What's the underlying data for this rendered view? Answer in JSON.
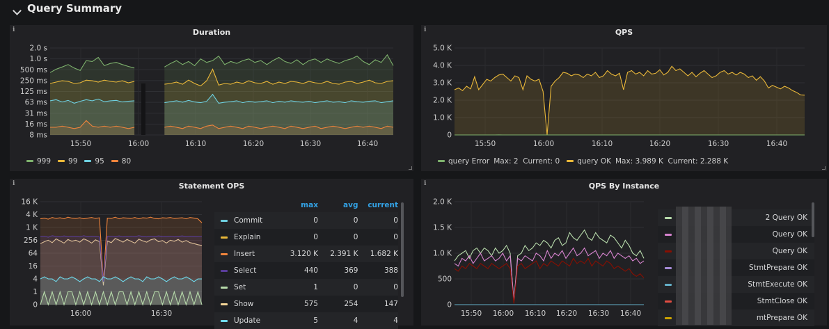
{
  "row": {
    "title": "Query Summary"
  },
  "panels": {
    "duration": {
      "title": "Duration",
      "info": "i",
      "legend": [
        {
          "label": "999",
          "color": "#7eb26d"
        },
        {
          "label": "99",
          "color": "#eab839"
        },
        {
          "label": "95",
          "color": "#6ed0e0"
        },
        {
          "label": "80",
          "color": "#ef843c"
        }
      ]
    },
    "qps": {
      "title": "QPS",
      "info": "i",
      "legend": [
        {
          "label": "query Error",
          "stats": "Max: 2  Current: 0",
          "color": "#7eb26d"
        },
        {
          "label": "query OK",
          "stats": "Max: 3.989 K  Current: 2.288 K",
          "color": "#eab839"
        }
      ]
    },
    "statement_ops": {
      "title": "Statement OPS",
      "info": "i",
      "table": {
        "headers": [
          "max",
          "avg",
          "current"
        ],
        "rows": [
          {
            "name": "Commit",
            "max": "0",
            "avg": "0",
            "current": "0",
            "color": "#6ed0e0"
          },
          {
            "name": "Explain",
            "max": "0",
            "avg": "0",
            "current": "0",
            "color": "#eab839"
          },
          {
            "name": "Insert",
            "max": "3.120 K",
            "avg": "2.391 K",
            "current": "1.682 K",
            "color": "#ef843c"
          },
          {
            "name": "Select",
            "max": "440",
            "avg": "369",
            "current": "388",
            "color": "#5a3d9a"
          },
          {
            "name": "Set",
            "max": "1",
            "avg": "0",
            "current": "0",
            "color": "#b7dbab"
          },
          {
            "name": "Show",
            "max": "575",
            "avg": "254",
            "current": "147",
            "color": "#f4d598"
          },
          {
            "name": "Update",
            "max": "5",
            "avg": "4",
            "current": "4",
            "color": "#70dbed"
          }
        ]
      }
    },
    "qps_by_instance": {
      "title": "QPS By Instance",
      "info": "i",
      "legend": [
        {
          "label": "2 Query OK",
          "color": "#b7dbab"
        },
        {
          "label": "Query OK",
          "color": "#d683ce"
        },
        {
          "label": "Query OK",
          "color": "#890f02"
        },
        {
          "label": "StmtPrepare OK",
          "color": "#a58bd6"
        },
        {
          "label": "StmtExecute OK",
          "color": "#64b0c8"
        },
        {
          "label": "StmtClose OK",
          "color": "#e24d42"
        },
        {
          "label": "mtPrepare OK",
          "color": "#cca300"
        }
      ]
    }
  },
  "chart_data": [
    {
      "type": "line",
      "title": "Duration",
      "x_ticks": [
        "15:50",
        "16:00",
        "16:10",
        "16:20",
        "16:30",
        "16:40"
      ],
      "y_ticks": [
        "8 ms",
        "16 ms",
        "31 ms",
        "63 ms",
        "125 ms",
        "250 ms",
        "500 ms",
        "1.0 s",
        "2.0 s"
      ],
      "log_scale": true,
      "grid": true,
      "series": [
        {
          "name": "999",
          "color": "#7eb26d",
          "values": [
            420,
            520,
            600,
            700,
            560,
            480,
            900,
            850,
            1100,
            650,
            750,
            800,
            700,
            620,
            560,
            0,
            0,
            0,
            0,
            600,
            750,
            900,
            700,
            850,
            650,
            1000,
            800,
            900,
            1200,
            700,
            850,
            750,
            900,
            1000,
            800,
            900,
            700,
            900,
            1100,
            850,
            750,
            950,
            700,
            900,
            1000,
            800,
            1000,
            850,
            750,
            900,
            1000,
            1200,
            850,
            700,
            950,
            800,
            1300,
            650
          ]
        },
        {
          "name": "99",
          "color": "#eab839",
          "values": [
            210,
            230,
            250,
            240,
            210,
            220,
            260,
            250,
            230,
            260,
            240,
            230,
            250,
            220,
            240,
            0,
            0,
            0,
            0,
            200,
            210,
            230,
            200,
            260,
            210,
            180,
            250,
            520,
            190,
            210,
            200,
            230,
            210,
            250,
            220,
            210,
            240,
            200,
            230,
            210,
            240,
            230,
            210,
            240,
            220,
            210,
            240,
            210,
            200,
            230,
            240,
            210,
            230,
            260,
            220,
            210,
            240,
            250
          ]
        },
        {
          "name": "95",
          "color": "#6ed0e0",
          "values": [
            70,
            75,
            65,
            72,
            60,
            68,
            75,
            70,
            78,
            66,
            70,
            72,
            65,
            68,
            70,
            0,
            0,
            0,
            0,
            62,
            66,
            70,
            64,
            72,
            65,
            62,
            68,
            105,
            60,
            64,
            66,
            70,
            62,
            68,
            64,
            66,
            70,
            62,
            68,
            64,
            70,
            66,
            64,
            68,
            62,
            66,
            70,
            64,
            66,
            62,
            70,
            66,
            64,
            68,
            70,
            62,
            66,
            70
          ]
        },
        {
          "name": "80",
          "color": "#ef843c",
          "values": [
            13,
            13,
            14,
            13,
            12,
            13,
            20,
            14,
            13,
            14,
            13,
            14,
            13,
            12,
            13,
            0,
            0,
            0,
            0,
            13,
            14,
            13,
            12,
            14,
            13,
            12,
            14,
            15,
            12,
            13,
            14,
            13,
            12,
            14,
            13,
            12,
            13,
            14,
            13,
            12,
            14,
            13,
            12,
            13,
            14,
            12,
            13,
            14,
            13,
            12,
            13,
            14,
            13,
            14,
            13,
            12,
            14,
            13
          ]
        }
      ]
    },
    {
      "type": "area",
      "title": "QPS",
      "x_ticks": [
        "15:50",
        "16:00",
        "16:10",
        "16:20",
        "16:30",
        "16:40"
      ],
      "y_ticks": [
        "0",
        "1.0 K",
        "2.0 K",
        "3.0 K",
        "4.0 K",
        "5.0 K"
      ],
      "ylim": [
        0,
        5000
      ],
      "grid": true,
      "series": [
        {
          "name": "query OK",
          "color": "#eab839",
          "values": [
            2600,
            2700,
            2550,
            2800,
            2650,
            3350,
            2600,
            2900,
            3200,
            3100,
            3300,
            3450,
            3500,
            3300,
            3100,
            3400,
            3300,
            2600,
            3400,
            3200,
            3100,
            3200,
            2500,
            0,
            2800,
            3100,
            3300,
            3600,
            3550,
            3400,
            3500,
            3450,
            3300,
            3500,
            3400,
            3600,
            3300,
            3400,
            3700,
            3500,
            3400,
            3550,
            2600,
            3600,
            3700,
            3500,
            3600,
            3400,
            3700,
            3500,
            3550,
            3750,
            3450,
            3600,
            3950,
            3700,
            3800,
            3600,
            3400,
            3600,
            3350,
            3550,
            3700,
            3500,
            3300,
            3400,
            3600,
            3700,
            3500,
            3600,
            3450,
            3600,
            3500,
            3300,
            3400,
            3150,
            3350,
            3100,
            2700,
            2850,
            2750,
            2650,
            2800,
            2700,
            2550,
            2450,
            2300,
            2288
          ]
        },
        {
          "name": "query Error",
          "color": "#7eb26d",
          "values": [
            0,
            0,
            0,
            0,
            0,
            0,
            0,
            0,
            0,
            0,
            0,
            2,
            0,
            0,
            0,
            0,
            0,
            0,
            0,
            0,
            0,
            0,
            0,
            0,
            0,
            0,
            0,
            0,
            0,
            0,
            0,
            0,
            0,
            0,
            0,
            0,
            0,
            0,
            0,
            0,
            0,
            0,
            0,
            0,
            0,
            0,
            0,
            0,
            0,
            0,
            0,
            0,
            0,
            0,
            0,
            0,
            0,
            0,
            0,
            0,
            0,
            0,
            0,
            0,
            0,
            0,
            0,
            0,
            0,
            0,
            0,
            0,
            0,
            0,
            0,
            0,
            0,
            0,
            0,
            0,
            0,
            0,
            0,
            0,
            0,
            0,
            0,
            0
          ]
        }
      ]
    },
    {
      "type": "line",
      "title": "Statement OPS",
      "x_ticks": [
        "16:00",
        "16:30"
      ],
      "y_ticks": [
        "0",
        "1",
        "4",
        "16",
        "64",
        "256",
        "1 K",
        "4 K",
        "16 K"
      ],
      "log_scale": true,
      "grid": true,
      "series": [
        {
          "name": "Insert",
          "color": "#ef843c",
          "values": [
            2600,
            2800,
            2500,
            3000,
            2700,
            2900,
            2600,
            3100,
            2800,
            2700,
            2900,
            2600,
            2800,
            3000,
            2700,
            2900,
            3,
            2800,
            2700,
            3100,
            2600,
            2900,
            2800,
            2700,
            3000,
            2600,
            2900,
            2800,
            3100,
            2700,
            2600,
            2900,
            2800,
            3000,
            2700,
            2800,
            2900,
            2600,
            3000,
            2800,
            2600,
            1700
          ]
        },
        {
          "name": "Show",
          "color": "#f4d598",
          "values": [
            180,
            220,
            260,
            200,
            300,
            240,
            190,
            280,
            230,
            260,
            210,
            300,
            250,
            190,
            270,
            220,
            2,
            240,
            200,
            310,
            260,
            210,
            280,
            230,
            190,
            290,
            240,
            210,
            270,
            300,
            220,
            250,
            190,
            260,
            230,
            280,
            210,
            250,
            200,
            180,
            160,
            147
          ]
        },
        {
          "name": "Select",
          "color": "#5a3d9a",
          "values": [
            380,
            400,
            360,
            420,
            390,
            370,
            410,
            380,
            400,
            390,
            370,
            420,
            380,
            400,
            390,
            370,
            3,
            390,
            400,
            380,
            410,
            370,
            390,
            400,
            380,
            420,
            390,
            370,
            400,
            380,
            410,
            390,
            380,
            400,
            370,
            390,
            410,
            380,
            400,
            390,
            380,
            388
          ]
        },
        {
          "name": "Update",
          "color": "#70dbed",
          "values": [
            4,
            5,
            4,
            4,
            3,
            5,
            4,
            4,
            5,
            4,
            3,
            4,
            5,
            4,
            4,
            3,
            5,
            4,
            4,
            5,
            4,
            3,
            4,
            5,
            4,
            4,
            3,
            5,
            4,
            4,
            5,
            4,
            3,
            4,
            5,
            4,
            4,
            5,
            4,
            3,
            4,
            4
          ]
        },
        {
          "name": "Set",
          "color": "#b7dbab",
          "values": [
            0,
            1,
            0,
            1,
            0,
            1,
            0,
            1,
            1,
            0,
            1,
            0,
            1,
            0,
            1,
            0,
            1,
            0,
            1,
            0,
            1,
            1,
            0,
            1,
            0,
            1,
            0,
            1,
            0,
            1,
            1,
            0,
            1,
            0,
            1,
            0,
            1,
            0,
            1,
            0,
            1,
            0
          ]
        }
      ]
    },
    {
      "type": "line",
      "title": "QPS By Instance",
      "x_ticks": [
        "15:50",
        "16:00",
        "16:10",
        "16:20",
        "16:30",
        "16:40"
      ],
      "y_ticks": [
        "0",
        "500",
        "1.0 K",
        "1.5 K",
        "2.0 K"
      ],
      "ylim": [
        0,
        2000
      ],
      "grid": true,
      "series": [
        {
          "name": "2 Query OK",
          "color": "#b7dbab",
          "values": [
            850,
            950,
            1000,
            1050,
            900,
            1050,
            1100,
            1000,
            1100,
            1050,
            950,
            1100,
            1000,
            1050,
            1150,
            1000,
            50,
            950,
            1000,
            1150,
            1050,
            1100,
            1200,
            1150,
            1250,
            1200,
            1100,
            1250,
            1300,
            1150,
            1200,
            1400,
            1300,
            1250,
            1350,
            1450,
            1300,
            1250,
            1400,
            1300,
            1250,
            1200,
            1350,
            1300,
            1200,
            1100,
            1250,
            1150,
            1000,
            950,
            1050,
            900
          ]
        },
        {
          "name": "Query OK",
          "color": "#d683ce",
          "values": [
            800,
            750,
            900,
            850,
            950,
            800,
            900,
            1000,
            850,
            900,
            950,
            850,
            900,
            1000,
            850,
            950,
            50,
            900,
            850,
            950,
            900,
            850,
            1000,
            950,
            850,
            1050,
            900,
            1000,
            950,
            1050,
            900,
            1000,
            1100,
            950,
            1000,
            1100,
            950,
            1000,
            1050,
            900,
            1000,
            950,
            1050,
            900,
            1000,
            950,
            900,
            950,
            850,
            900,
            800,
            850
          ]
        },
        {
          "name": "Query OK",
          "color": "#890f02",
          "values": [
            700,
            650,
            750,
            700,
            800,
            750,
            700,
            800,
            750,
            700,
            800,
            750,
            700,
            750,
            800,
            700,
            20,
            750,
            800,
            700,
            750,
            800,
            850,
            700,
            800,
            750,
            850,
            800,
            750,
            850,
            800,
            750,
            900,
            800,
            850,
            800,
            900,
            750,
            850,
            800,
            750,
            850,
            800,
            700,
            750,
            700,
            650,
            700,
            600,
            550,
            600,
            520
          ]
        },
        {
          "name": "StmtExecute OK",
          "color": "#64b0c8",
          "values": [
            0,
            0,
            0,
            0,
            0,
            0,
            0,
            0,
            0,
            0,
            0,
            0,
            0,
            0,
            0,
            0,
            0,
            0,
            0,
            0,
            0,
            0,
            0,
            0,
            0,
            0,
            0,
            0,
            0,
            0,
            0,
            0,
            0,
            0,
            0,
            0,
            0,
            0,
            0,
            0,
            0,
            0,
            0,
            0,
            0,
            0,
            0,
            0,
            0,
            0,
            0,
            0
          ]
        }
      ]
    }
  ]
}
